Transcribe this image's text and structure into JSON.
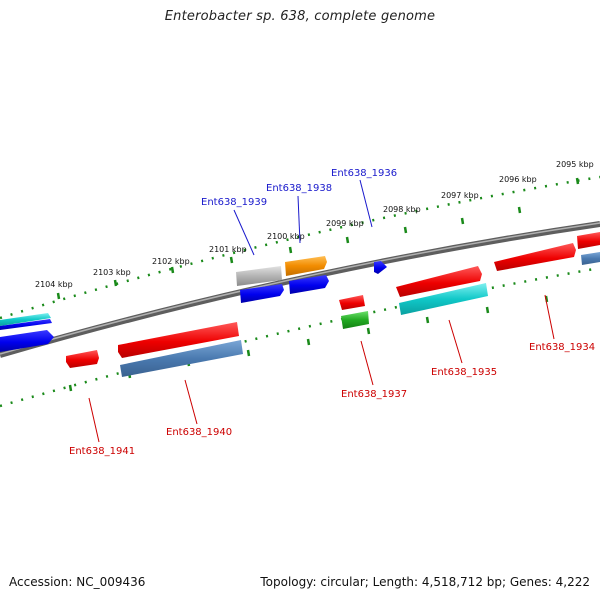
{
  "title": "Enterobacter sp. 638, complete genome",
  "footer": {
    "accession": "Accession: NC_009436",
    "summary": "Topology: circular; Length: 4,518,712 bp; Genes: 4,222"
  },
  "colors": {
    "backbone": "#7a7a7a",
    "ruler_dots": "#1a8a1a",
    "label_top": "#1a1acc",
    "label_bottom": "#cc0000"
  },
  "ruler_ticks": [
    "2104 kbp",
    "2103 kbp",
    "2102 kbp",
    "2101 kbp",
    "2100 kbp",
    "2099 kbp",
    "2098 kbp",
    "2097 kbp",
    "2096 kbp",
    "2095 kbp"
  ],
  "gene_labels_top": [
    "Ent638_1939",
    "Ent638_1938",
    "Ent638_1936"
  ],
  "gene_labels_bottom": [
    "Ent638_1941",
    "Ent638_1940",
    "Ent638_1937",
    "Ent638_1935",
    "Ent638_1934"
  ],
  "feature_colors": [
    "red",
    "blue",
    "steelblue",
    "cyan",
    "orange",
    "gray",
    "green"
  ]
}
